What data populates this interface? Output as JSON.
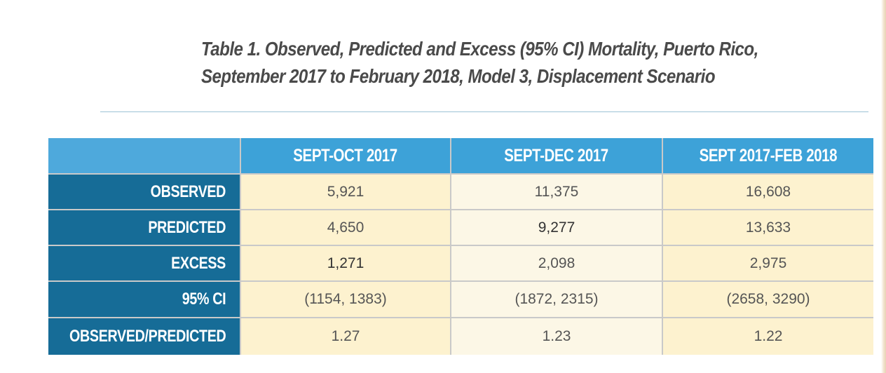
{
  "title": {
    "line1": "Table 1. Observed, Predicted and Excess (95% CI) Mortality, Puerto Rico,",
    "line2": "September 2017 to February 2018, Model 3, Displacement Scenario"
  },
  "table": {
    "headers": [
      "SEPT-OCT 2017",
      "SEPT-DEC 2017",
      "SEPT 2017-FEB 2018"
    ],
    "rows": [
      {
        "label": "OBSERVED",
        "values": [
          "5,921",
          "11,375",
          "16,608"
        ]
      },
      {
        "label": "PREDICTED",
        "values": [
          "4,650",
          "9,277",
          "13,633"
        ]
      },
      {
        "label": "EXCESS",
        "values": [
          "1,271",
          "2,098",
          "2,975"
        ]
      },
      {
        "label": "95% CI",
        "values": [
          "(1154, 1383)",
          "(1872, 2315)",
          "(2658, 3290)"
        ]
      },
      {
        "label": "OBSERVED/PREDICTED",
        "values": [
          "1.27",
          "1.23",
          "1.22"
        ]
      }
    ]
  },
  "colors": {
    "header_blue": "#3da2d8",
    "row_label_blue": "#166c97",
    "cell_cream": "#fdf2cf",
    "cell_light_cream": "#fcf7e6",
    "title_gray": "#4a4a4a"
  }
}
